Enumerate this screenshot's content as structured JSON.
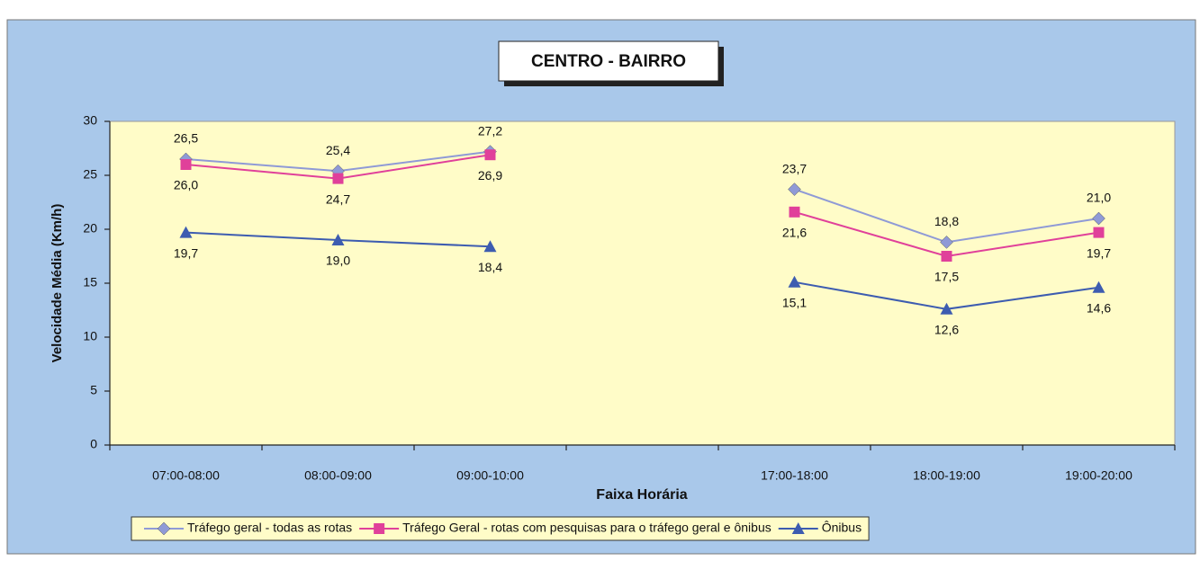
{
  "chart_data": {
    "type": "line",
    "title": "CENTRO - BAIRRO",
    "y_label": "Velocidade Média (Km/h)",
    "x_label": "Faixa Horária",
    "categories": [
      "07:00-08:00",
      "08:00-09:00",
      "09:00-10:00",
      null,
      "17:00-18:00",
      "18:00-19:00",
      "19:00-20:00"
    ],
    "series": [
      {
        "name": "Tráfego geral - todas as rotas",
        "color": "#8f9ad6",
        "marker": "diamond",
        "values": [
          26.5,
          25.4,
          27.2,
          null,
          23.7,
          18.8,
          21.0
        ],
        "value_labels": [
          "26,5",
          "25,4",
          "27,2",
          null,
          "23,7",
          "18,8",
          "21,0"
        ]
      },
      {
        "name": "Tráfego Geral - rotas com pesquisas para o tráfego geral e ônibus",
        "color": "#e0409a",
        "marker": "square",
        "values": [
          26.0,
          24.7,
          26.9,
          null,
          21.6,
          17.5,
          19.7
        ],
        "value_labels": [
          "26,0",
          "24,7",
          "26,9",
          null,
          "21,6",
          "17,5",
          "19,7"
        ]
      },
      {
        "name": "Ônibus",
        "color": "#3d5cb0",
        "marker": "triangle",
        "values": [
          19.7,
          19.0,
          18.4,
          null,
          15.1,
          12.6,
          14.6
        ],
        "value_labels": [
          "19,7",
          "19,0",
          "18,4",
          null,
          "15,1",
          "12,6",
          "14,6"
        ]
      }
    ],
    "ylim": [
      0,
      30
    ],
    "yticks": [
      0,
      5,
      10,
      15,
      20,
      25,
      30
    ],
    "legend": "bottom"
  }
}
